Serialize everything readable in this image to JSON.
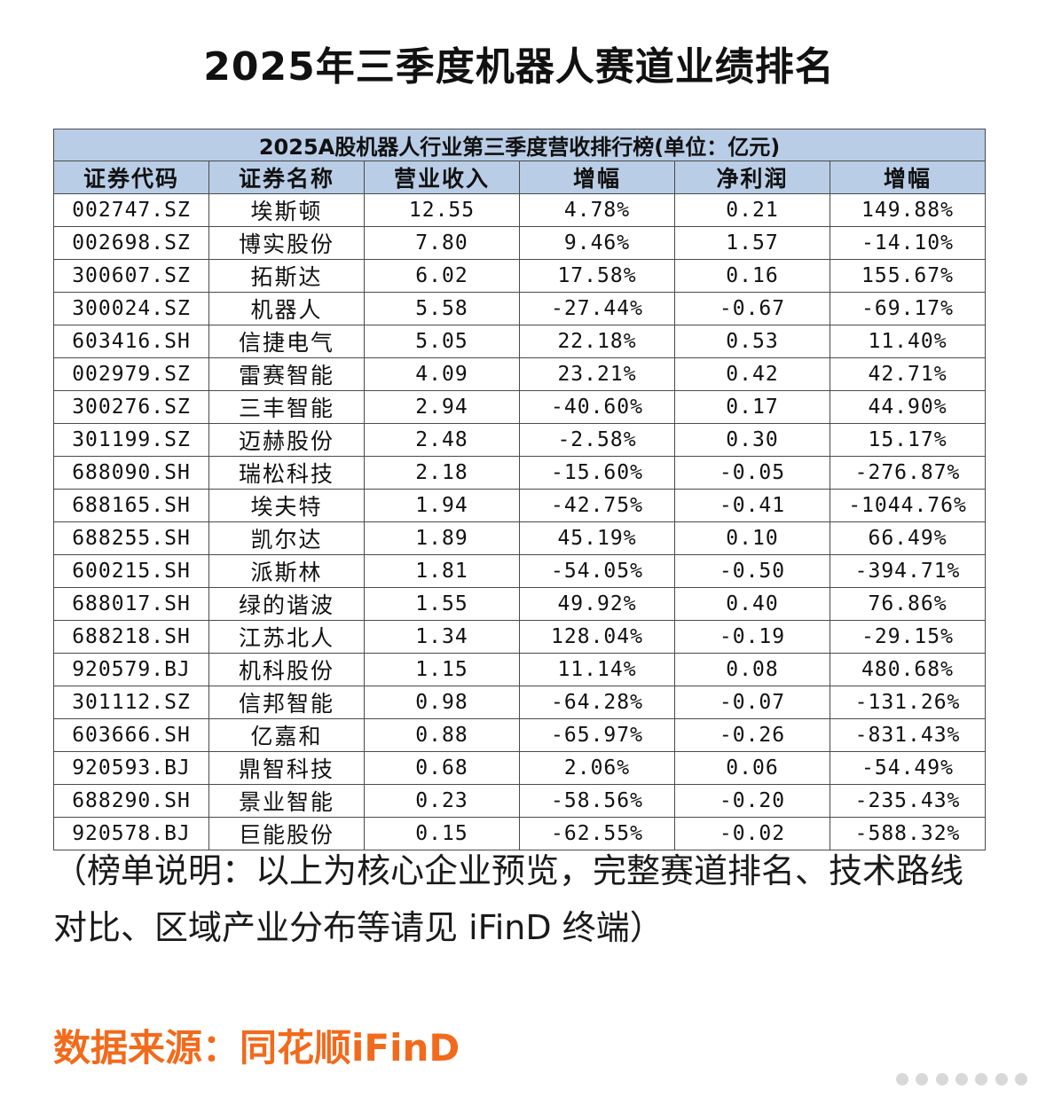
{
  "title": "2025年三季度机器人赛道业绩排名",
  "table": {
    "caption": "2025A股机器人行业第三季度营收排行榜(单位：亿元)",
    "headers": [
      "证券代码",
      "证券名称",
      "营业收入",
      "增幅",
      "净利润",
      "增幅"
    ],
    "rows": [
      [
        "002747.SZ",
        "埃斯顿",
        "12.55",
        "4.78%",
        "0.21",
        "149.88%"
      ],
      [
        "002698.SZ",
        "博实股份",
        "7.80",
        "9.46%",
        "1.57",
        "-14.10%"
      ],
      [
        "300607.SZ",
        "拓斯达",
        "6.02",
        "17.58%",
        "0.16",
        "155.67%"
      ],
      [
        "300024.SZ",
        "机器人",
        "5.58",
        "-27.44%",
        "-0.67",
        "-69.17%"
      ],
      [
        "603416.SH",
        "信捷电气",
        "5.05",
        "22.18%",
        "0.53",
        "11.40%"
      ],
      [
        "002979.SZ",
        "雷赛智能",
        "4.09",
        "23.21%",
        "0.42",
        "42.71%"
      ],
      [
        "300276.SZ",
        "三丰智能",
        "2.94",
        "-40.60%",
        "0.17",
        "44.90%"
      ],
      [
        "301199.SZ",
        "迈赫股份",
        "2.48",
        "-2.58%",
        "0.30",
        "15.17%"
      ],
      [
        "688090.SH",
        "瑞松科技",
        "2.18",
        "-15.60%",
        "-0.05",
        "-276.87%"
      ],
      [
        "688165.SH",
        "埃夫特",
        "1.94",
        "-42.75%",
        "-0.41",
        "-1044.76%"
      ],
      [
        "688255.SH",
        "凯尔达",
        "1.89",
        "45.19%",
        "0.10",
        "66.49%"
      ],
      [
        "600215.SH",
        "派斯林",
        "1.81",
        "-54.05%",
        "-0.50",
        "-394.71%"
      ],
      [
        "688017.SH",
        "绿的谐波",
        "1.55",
        "49.92%",
        "0.40",
        "76.86%"
      ],
      [
        "688218.SH",
        "江苏北人",
        "1.34",
        "128.04%",
        "-0.19",
        "-29.15%"
      ],
      [
        "920579.BJ",
        "机科股份",
        "1.15",
        "11.14%",
        "0.08",
        "480.68%"
      ],
      [
        "301112.SZ",
        "信邦智能",
        "0.98",
        "-64.28%",
        "-0.07",
        "-131.26%"
      ],
      [
        "603666.SH",
        "亿嘉和",
        "0.88",
        "-65.97%",
        "-0.26",
        "-831.43%"
      ],
      [
        "920593.BJ",
        "鼎智科技",
        "0.68",
        "2.06%",
        "0.06",
        "-54.49%"
      ],
      [
        "688290.SH",
        "景业智能",
        "0.23",
        "-58.56%",
        "-0.20",
        "-235.43%"
      ],
      [
        "920578.BJ",
        "巨能股份",
        "0.15",
        "-62.55%",
        "-0.02",
        "-588.32%"
      ]
    ]
  },
  "note": "（榜单说明：以上为核心企业预览，完整赛道排名、技术路线对比、区域产业分布等请见 iFinD 终端）",
  "source": "数据来源：同花顺iFinD",
  "colors": {
    "header_bg": "#b9cde6",
    "source_text": "#f26a1b",
    "border": "#4a4a4a"
  }
}
